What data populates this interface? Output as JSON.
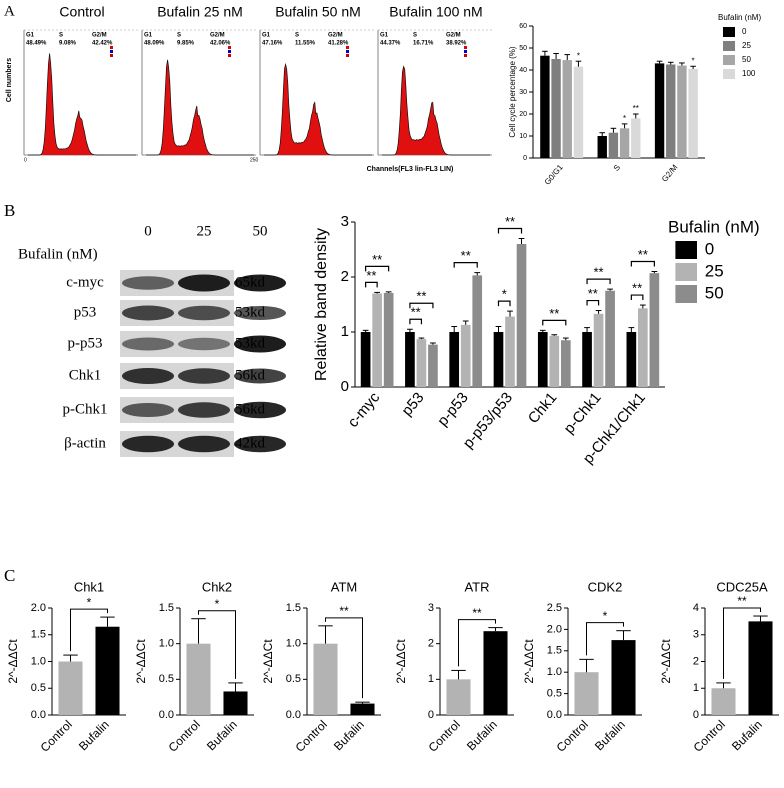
{
  "panel_labels": [
    "A",
    "B",
    "C"
  ],
  "flow": {
    "y_label": "Cell numbers",
    "x_label": "Channels(FL3 lin-FL3 LIN)",
    "x_start": "0",
    "x_end": "250",
    "phases": [
      "G1",
      "S",
      "G2/M"
    ],
    "panels": [
      {
        "title": "Control",
        "percents": [
          "48.49%",
          "9.08%",
          "42.42%"
        ]
      },
      {
        "title": "Bufalin 25 nM",
        "percents": [
          "48.09%",
          "9.85%",
          "42.06%"
        ]
      },
      {
        "title": "Bufalin 50 nM",
        "percents": [
          "47.16%",
          "11.55%",
          "41.28%"
        ]
      },
      {
        "title": "Bufalin 100 nM",
        "percents": [
          "44.37%",
          "16.71%",
          "38.92%"
        ]
      }
    ]
  },
  "blot": {
    "treatment_label": "Bufalin (nM)",
    "lanes": [
      "0",
      "25",
      "50"
    ],
    "rows": [
      {
        "protein": "c-myc",
        "size": "65kd"
      },
      {
        "protein": "p53",
        "size": "53kd"
      },
      {
        "protein": "p-p53",
        "size": "53kd"
      },
      {
        "protein": "Chk1",
        "size": "56kd"
      },
      {
        "protein": "p-Chk1",
        "size": "56kd"
      },
      {
        "protein": "β-actin",
        "size": "42kd"
      }
    ]
  },
  "chart_data": [
    {
      "type": "bar",
      "y_label": "Cell cycle percentage (%)",
      "legend_title": "Bufalin (nM)",
      "categories": [
        "G0/G1",
        "S",
        "G2/M"
      ],
      "ylim": [
        0,
        60
      ],
      "yticks": [
        0,
        10,
        20,
        30,
        40,
        50,
        60
      ],
      "series": [
        {
          "name": "0",
          "color": "#000000",
          "values": [
            46.5,
            10,
            43
          ],
          "errors": [
            2,
            1.5,
            1
          ],
          "significance": [
            null,
            null,
            null
          ]
        },
        {
          "name": "25",
          "color": "#7f7f7f",
          "values": [
            45,
            11.5,
            42.5
          ],
          "errors": [
            2.5,
            2,
            1
          ],
          "significance": [
            null,
            null,
            null
          ]
        },
        {
          "name": "50",
          "color": "#a6a6a6",
          "values": [
            44.5,
            13.5,
            42
          ],
          "errors": [
            2.5,
            2,
            1.2
          ],
          "significance": [
            null,
            "*",
            null
          ]
        },
        {
          "name": "100",
          "color": "#d9d9d9",
          "values": [
            41.5,
            18,
            40.5
          ],
          "errors": [
            2.5,
            2,
            1.2
          ],
          "significance": [
            "*",
            "**",
            "*"
          ]
        }
      ]
    },
    {
      "type": "bar",
      "y_label": "Relative band density",
      "legend_title": "Bufalin (nM)",
      "categories": [
        "c-myc",
        "p53",
        "p-p53",
        "p-p53/p53",
        "Chk1",
        "p-Chk1",
        "p-Chk1/Chk1"
      ],
      "ylim": [
        0,
        3
      ],
      "yticks": [
        0,
        1,
        2,
        3
      ],
      "series": [
        {
          "name": "0",
          "color": "#000000",
          "values": [
            1,
            1,
            1,
            1,
            1,
            1,
            1
          ],
          "errors": [
            0.03,
            0.05,
            0.1,
            0.1,
            0.03,
            0.08,
            0.08
          ],
          "significance": [
            null,
            null,
            null,
            null,
            null,
            null,
            null
          ]
        },
        {
          "name": "25",
          "color": "#b3b3b3",
          "values": [
            1.7,
            0.87,
            1.13,
            1.28,
            0.93,
            1.33,
            1.43
          ],
          "errors": [
            0.02,
            0.02,
            0.07,
            0.1,
            0.02,
            0.06,
            0.06
          ],
          "significance": [
            "**",
            "**",
            null,
            "*",
            null,
            "**",
            "**"
          ]
        },
        {
          "name": "50",
          "color": "#8c8c8c",
          "values": [
            1.71,
            0.77,
            2.03,
            2.6,
            0.85,
            1.75,
            2.07
          ],
          "errors": [
            0.02,
            0.03,
            0.05,
            0.1,
            0.04,
            0.03,
            0.03
          ],
          "significance": [
            "**",
            "**",
            "**",
            "**",
            "**",
            "**",
            "**"
          ]
        }
      ]
    },
    {
      "type": "bar",
      "title": "Chk1",
      "y_label": "2^-ΔΔCt",
      "categories": [
        "Control",
        "Bufalin"
      ],
      "colors": [
        "#b3b3b3",
        "#000000"
      ],
      "values": [
        1.0,
        1.65
      ],
      "errors": [
        0.12,
        0.18
      ],
      "significance": "*",
      "ylim": [
        0,
        2
      ],
      "yticks": [
        {
          "value": 0,
          "label": "0.0"
        },
        0.5,
        {
          "value": 1,
          "label": "1.0"
        },
        1.5,
        {
          "value": 2,
          "label": "2.0"
        }
      ]
    },
    {
      "type": "bar",
      "title": "Chk2",
      "y_label": "2^-ΔΔCt",
      "categories": [
        "Control",
        "Bufalin"
      ],
      "colors": [
        "#b3b3b3",
        "#000000"
      ],
      "values": [
        1.0,
        0.33
      ],
      "errors": [
        0.35,
        0.12
      ],
      "significance": "*",
      "ylim": [
        0,
        1.5
      ],
      "yticks": [
        {
          "value": 0,
          "label": "0.0"
        },
        0.5,
        {
          "value": 1,
          "label": "1.0"
        },
        1.5
      ]
    },
    {
      "type": "bar",
      "title": "ATM",
      "y_label": "2^-ΔΔCt",
      "categories": [
        "Control",
        "Bufalin"
      ],
      "colors": [
        "#b3b3b3",
        "#000000"
      ],
      "values": [
        1.0,
        0.16
      ],
      "errors": [
        0.25,
        0.02
      ],
      "significance": "**",
      "ylim": [
        0,
        1.5
      ],
      "yticks": [
        {
          "value": 0,
          "label": "0.0"
        },
        0.5,
        {
          "value": 1,
          "label": "1.0"
        },
        1.5
      ]
    },
    {
      "type": "bar",
      "title": "ATR",
      "y_label": "2^-ΔΔCt",
      "categories": [
        "Control",
        "Bufalin"
      ],
      "colors": [
        "#b3b3b3",
        "#000000"
      ],
      "values": [
        1.0,
        2.35
      ],
      "errors": [
        0.25,
        0.1
      ],
      "significance": "**",
      "ylim": [
        0,
        3
      ],
      "yticks": [
        0,
        1,
        2,
        3
      ]
    },
    {
      "type": "bar",
      "title": "CDK2",
      "y_label": "2^-ΔΔCt",
      "categories": [
        "Control",
        "Bufalin"
      ],
      "colors": [
        "#b3b3b3",
        "#000000"
      ],
      "values": [
        1.0,
        1.75
      ],
      "errors": [
        0.3,
        0.22
      ],
      "significance": "*",
      "ylim": [
        0,
        2.5
      ],
      "yticks": [
        {
          "value": 0,
          "label": "0.0"
        },
        0.5,
        {
          "value": 1,
          "label": "1.0"
        },
        1.5,
        {
          "value": 2,
          "label": "2.0"
        },
        2.5
      ]
    },
    {
      "type": "bar",
      "title": "CDC25A",
      "y_label": "2^-ΔΔCt",
      "categories": [
        "Control",
        "Bufalin"
      ],
      "colors": [
        "#b3b3b3",
        "#000000"
      ],
      "values": [
        1.0,
        3.5
      ],
      "errors": [
        0.2,
        0.2
      ],
      "significance": "**",
      "ylim": [
        0,
        4
      ],
      "yticks": [
        0,
        1,
        2,
        3,
        4
      ]
    }
  ]
}
